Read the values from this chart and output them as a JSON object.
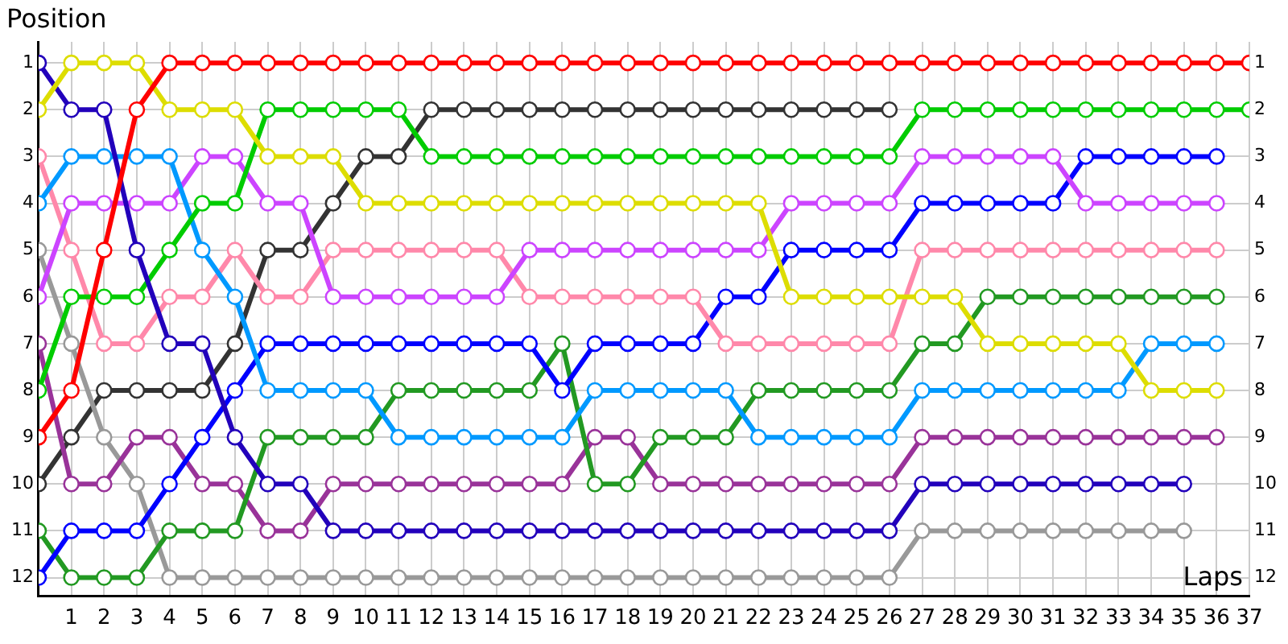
{
  "chart_data": {
    "type": "line",
    "ylabel": "Position",
    "xlabel": "Laps",
    "x": [
      0,
      1,
      2,
      3,
      4,
      5,
      6,
      7,
      8,
      9,
      10,
      11,
      12,
      13,
      14,
      15,
      16,
      17,
      18,
      19,
      20,
      21,
      22,
      23,
      24,
      25,
      26,
      27,
      28,
      29,
      30,
      31,
      32,
      33,
      34,
      35,
      36,
      37
    ],
    "series": [
      {
        "color": "#ff0000",
        "values": [
          9,
          8,
          5,
          2,
          1,
          1,
          1,
          1,
          1,
          1,
          1,
          1,
          1,
          1,
          1,
          1,
          1,
          1,
          1,
          1,
          1,
          1,
          1,
          1,
          1,
          1,
          1,
          1,
          1,
          1,
          1,
          1,
          1,
          1,
          1,
          1,
          1,
          1
        ]
      },
      {
        "color": "#dddd00",
        "values": [
          2,
          1,
          1,
          1,
          2,
          2,
          2,
          3,
          3,
          3,
          4,
          4,
          4,
          4,
          4,
          4,
          4,
          4,
          4,
          4,
          4,
          4,
          4,
          6,
          6,
          6,
          6,
          6,
          6,
          7,
          7,
          7,
          7,
          7,
          8,
          8,
          8,
          null
        ]
      },
      {
        "color": "#2200bb",
        "values": [
          1,
          2,
          2,
          5,
          7,
          7,
          9,
          10,
          10,
          11,
          11,
          11,
          11,
          11,
          11,
          11,
          11,
          11,
          11,
          11,
          11,
          11,
          11,
          11,
          11,
          11,
          11,
          10,
          10,
          10,
          10,
          10,
          10,
          10,
          10,
          10,
          null,
          null
        ]
      },
      {
        "color": "#00cc00",
        "values": [
          8,
          6,
          6,
          6,
          5,
          4,
          4,
          2,
          2,
          2,
          2,
          2,
          3,
          3,
          3,
          3,
          3,
          3,
          3,
          3,
          3,
          3,
          3,
          3,
          3,
          3,
          3,
          2,
          2,
          2,
          2,
          2,
          2,
          2,
          2,
          2,
          2,
          2
        ]
      },
      {
        "color": "#0099ff",
        "values": [
          4,
          3,
          3,
          3,
          3,
          5,
          6,
          8,
          8,
          8,
          8,
          9,
          9,
          9,
          9,
          9,
          9,
          8,
          8,
          8,
          8,
          8,
          9,
          9,
          9,
          9,
          9,
          8,
          8,
          8,
          8,
          8,
          8,
          8,
          7,
          7,
          7,
          null
        ]
      },
      {
        "color": "#cc44ff",
        "values": [
          6,
          4,
          4,
          4,
          4,
          3,
          3,
          4,
          4,
          6,
          6,
          6,
          6,
          6,
          6,
          5,
          5,
          5,
          5,
          5,
          5,
          5,
          5,
          4,
          4,
          4,
          4,
          3,
          3,
          3,
          3,
          3,
          4,
          4,
          4,
          4,
          4,
          null
        ]
      },
      {
        "color": "#ff88aa",
        "values": [
          3,
          5,
          7,
          7,
          6,
          6,
          5,
          6,
          6,
          5,
          5,
          5,
          5,
          5,
          5,
          6,
          6,
          6,
          6,
          6,
          6,
          7,
          7,
          7,
          7,
          7,
          7,
          5,
          5,
          5,
          5,
          5,
          5,
          5,
          5,
          5,
          5,
          null
        ]
      },
      {
        "color": "#0000ff",
        "values": [
          12,
          11,
          11,
          11,
          10,
          9,
          8,
          7,
          7,
          7,
          7,
          7,
          7,
          7,
          7,
          7,
          8,
          7,
          7,
          7,
          7,
          6,
          6,
          5,
          5,
          5,
          5,
          4,
          4,
          4,
          4,
          4,
          3,
          3,
          3,
          3,
          3,
          null
        ]
      },
      {
        "color": "#229922",
        "values": [
          11,
          12,
          12,
          12,
          11,
          11,
          11,
          9,
          9,
          9,
          9,
          8,
          8,
          8,
          8,
          8,
          7,
          10,
          10,
          9,
          9,
          9,
          8,
          8,
          8,
          8,
          8,
          7,
          7,
          6,
          6,
          6,
          6,
          6,
          6,
          6,
          6,
          null
        ]
      },
      {
        "color": "#993399",
        "values": [
          7,
          10,
          10,
          9,
          9,
          10,
          10,
          11,
          11,
          10,
          10,
          10,
          10,
          10,
          10,
          10,
          10,
          9,
          9,
          10,
          10,
          10,
          10,
          10,
          10,
          10,
          10,
          9,
          9,
          9,
          9,
          9,
          9,
          9,
          9,
          9,
          9,
          null
        ]
      },
      {
        "color": "#999999",
        "values": [
          5,
          7,
          9,
          10,
          12,
          12,
          12,
          12,
          12,
          12,
          12,
          12,
          12,
          12,
          12,
          12,
          12,
          12,
          12,
          12,
          12,
          12,
          12,
          12,
          12,
          12,
          12,
          11,
          11,
          11,
          11,
          11,
          11,
          11,
          11,
          11,
          null,
          null
        ]
      },
      {
        "color": "#333333",
        "values": [
          10,
          9,
          8,
          8,
          8,
          8,
          7,
          5,
          5,
          4,
          3,
          3,
          2,
          2,
          2,
          2,
          2,
          2,
          2,
          2,
          2,
          2,
          2,
          2,
          2,
          2,
          2,
          null,
          null,
          null,
          null,
          null,
          null,
          null,
          null,
          null,
          null,
          null
        ]
      }
    ],
    "xlim": [
      0,
      37
    ],
    "xticks": [
      1,
      2,
      3,
      4,
      5,
      6,
      7,
      8,
      9,
      10,
      11,
      12,
      13,
      14,
      15,
      16,
      17,
      18,
      19,
      20,
      21,
      22,
      23,
      24,
      25,
      26,
      27,
      28,
      29,
      30,
      31,
      32,
      33,
      34,
      35,
      36,
      37
    ],
    "ylim": [
      12.4,
      0.55
    ],
    "yticks": [
      1,
      2,
      3,
      4,
      5,
      6,
      7,
      8,
      9,
      10,
      11,
      12
    ],
    "y2lim": [
      12.4,
      0.55
    ],
    "y2ticks": [
      1,
      2,
      3,
      4,
      5,
      6,
      7,
      8,
      9,
      10,
      11,
      12
    ],
    "grid": true,
    "marker": "circle",
    "line_style": "solid",
    "legend": false
  }
}
